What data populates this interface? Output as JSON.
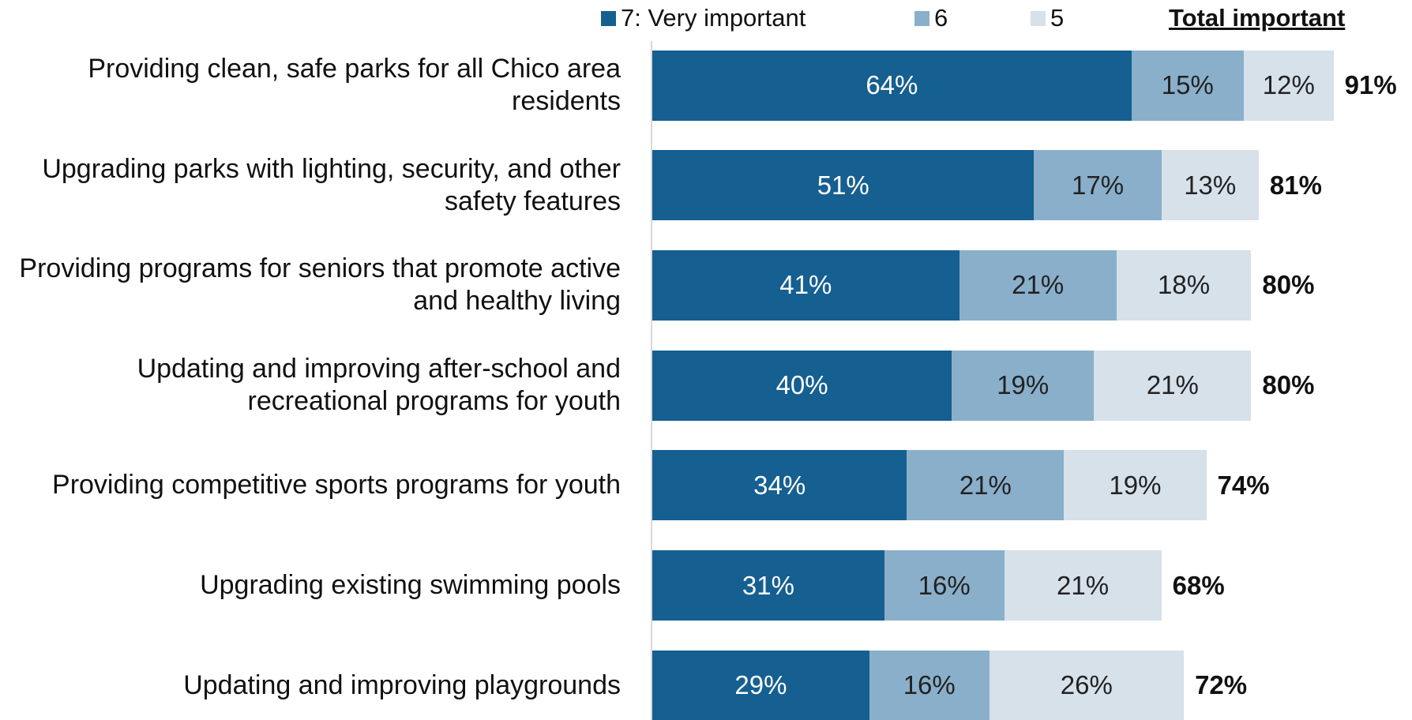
{
  "chart_data": {
    "type": "stacked-bar-horizontal",
    "categories": [
      "Providing clean, safe parks for all Chico area residents",
      "Upgrading parks with lighting, security, and other safety features",
      "Providing programs for seniors that promote active and healthy living",
      "Updating and improving after-school and recreational programs for youth",
      "Providing competitive sports programs for youth",
      "Upgrading existing swimming pools",
      "Updating and improving playgrounds"
    ],
    "series": [
      {
        "name": "7: Very important",
        "color": "#155f91",
        "values": [
          64,
          51,
          41,
          40,
          34,
          31,
          29
        ],
        "value_labels": [
          "64%",
          "51%",
          "41%",
          "40%",
          "34%",
          "31%",
          "29%"
        ]
      },
      {
        "name": "6",
        "color": "#8aafca",
        "values": [
          15,
          17,
          21,
          19,
          21,
          16,
          16
        ],
        "value_labels": [
          "15%",
          "17%",
          "21%",
          "19%",
          "21%",
          "16%",
          "16%"
        ]
      },
      {
        "name": "5",
        "color": "#d6e1ea",
        "values": [
          12,
          13,
          18,
          21,
          19,
          21,
          26
        ],
        "value_labels": [
          "12%",
          "13%",
          "18%",
          "21%",
          "19%",
          "21%",
          "26%"
        ]
      }
    ],
    "totals": {
      "name": "Total important",
      "values": [
        91,
        81,
        80,
        80,
        74,
        68,
        72
      ],
      "value_labels": [
        "91%",
        "81%",
        "80%",
        "80%",
        "74%",
        "68%",
        "72%"
      ]
    }
  }
}
